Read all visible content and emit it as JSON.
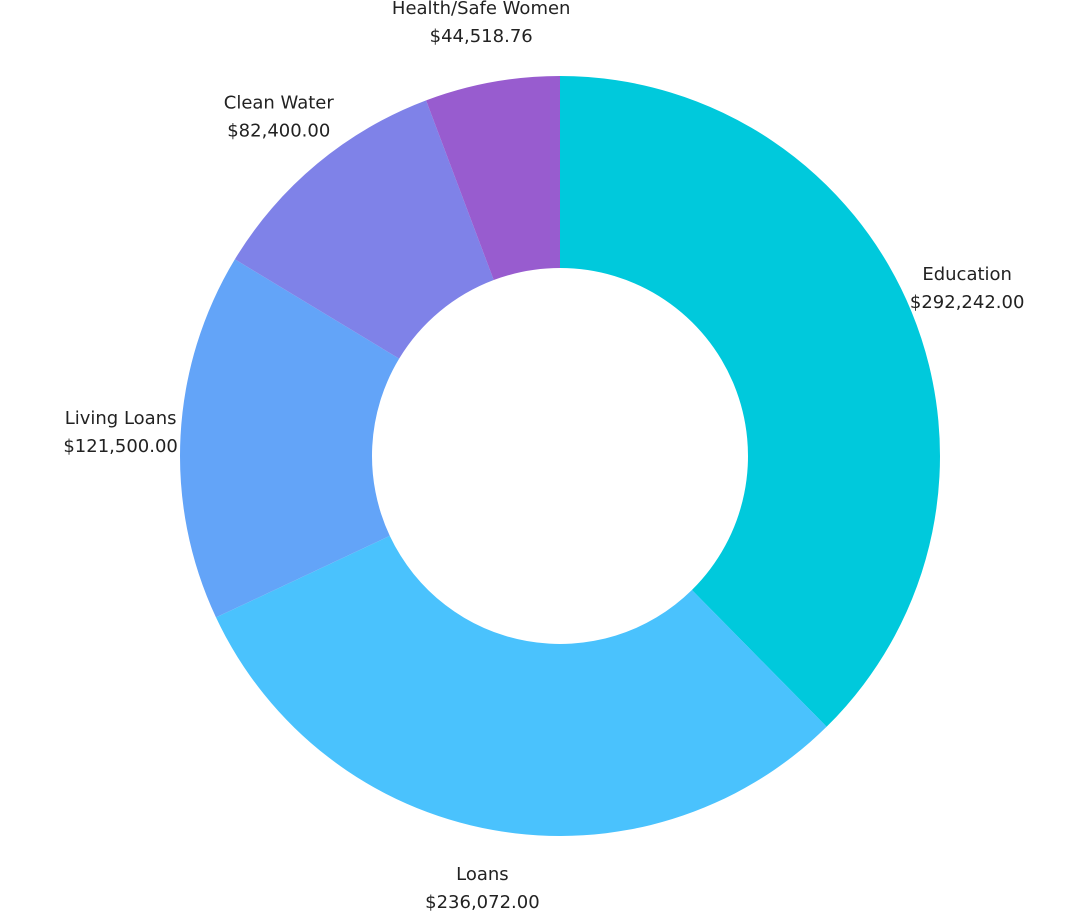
{
  "chart_data": {
    "type": "donut",
    "categories": [
      "Education",
      "Loans",
      "Living Loans",
      "Clean Water",
      "Health/Safe Women"
    ],
    "values": [
      292242,
      236072,
      121500,
      82400,
      44518.76
    ],
    "value_labels": [
      "$292,242.00",
      "$236,072.00",
      "$121,500.00",
      "$82,400.00",
      "$44,518.76"
    ],
    "colors": [
      "#00c9dc",
      "#4ac2fd",
      "#63a4f8",
      "#7f82e8",
      "#985ccf"
    ]
  }
}
